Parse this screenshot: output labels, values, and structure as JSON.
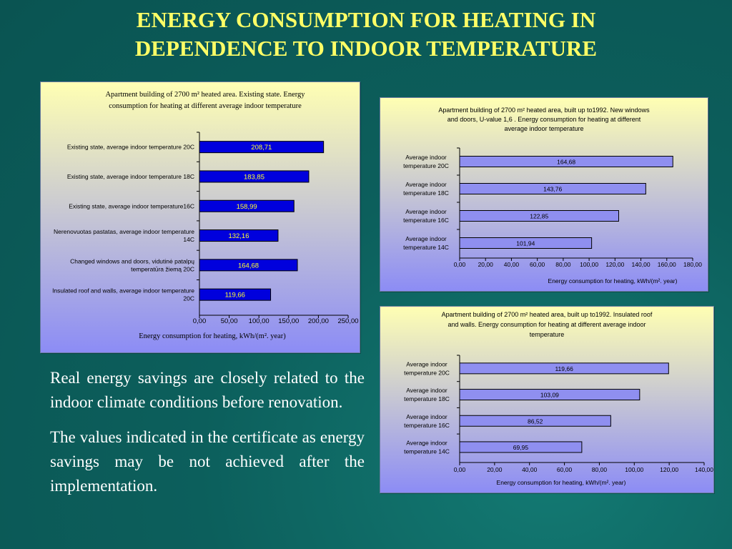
{
  "slide": {
    "title_line1": "ENERGY CONSUMPTION FOR HEATING IN",
    "title_line2": "DEPENDENCE TO INDOOR TEMPERATURE",
    "paragraph1": "Real energy savings are closely related to the indoor climate conditions before renovation.",
    "paragraph2": "The values indicated in the certificate as energy savings may be not achieved after the implementation."
  },
  "colors": {
    "background": "#0c5f5c",
    "title": "#ffff66",
    "bar_large_chart": "#0000dd",
    "bar_small_charts": "#8f8ff0",
    "panel_top": "#ffffb3",
    "panel_bottom": "#8c8cf5"
  },
  "chart_data": [
    {
      "type": "bar",
      "orientation": "horizontal",
      "title_lines": [
        "Apartment building of 2700 m² heated area. Existing state.  Energy",
        "consumption for heating at different average indoor temperature"
      ],
      "categories": [
        [
          "Existing state, average indoor temperature 20C"
        ],
        [
          "Existing state, average indoor temperature 18C"
        ],
        [
          "Existing state, average indoor temperature16C"
        ],
        [
          "Nerenovuotas pastatas, average indoor temperature",
          "14C"
        ],
        [
          "Changed windows and doors, vidutinė patalpų",
          "temperatūra žiemą 20C"
        ],
        [
          "Insulated roof and walls, average indoor temperature",
          "20C"
        ]
      ],
      "values": [
        208.71,
        183.85,
        158.99,
        132.16,
        164.68,
        119.66
      ],
      "value_labels": [
        "208,71",
        "183,85",
        "158,99",
        "132,16",
        "164,68",
        "119,66"
      ],
      "xlim": [
        0,
        250
      ],
      "ticks": [
        0,
        50,
        100,
        150,
        200,
        250
      ],
      "tick_labels": [
        "0,00",
        "50,00",
        "100,00",
        "150,00",
        "200,00",
        "250,00"
      ],
      "xlabel": "Energy consumption for heating, kWh/(m². year)",
      "grid": false
    },
    {
      "type": "bar",
      "orientation": "horizontal",
      "title_lines": [
        "Apartment building of 2700 m² heated area,   built up to1992. New windows",
        "and doors, U-value 1,6 .  Energy consumption for heating at different",
        "average indoor temperature"
      ],
      "categories": [
        [
          "Average indoor",
          "temperature  20C"
        ],
        [
          "Average indoor",
          "temperature  18C"
        ],
        [
          "Average indoor",
          "temperature  16C"
        ],
        [
          "Average indoor",
          "temperature 14C"
        ]
      ],
      "values": [
        164.68,
        143.76,
        122.85,
        101.94
      ],
      "value_labels": [
        "164,68",
        "143,76",
        "122,85",
        "101,94"
      ],
      "xlim": [
        0,
        180
      ],
      "ticks": [
        0,
        20,
        40,
        60,
        80,
        100,
        120,
        140,
        160,
        180
      ],
      "tick_labels": [
        "0,00",
        "20,00",
        "40,00",
        "60,00",
        "80,00",
        "100,00",
        "120,00",
        "140,00",
        "160,00",
        "180,00"
      ],
      "xlabel": "Energy consumption for heating, kWh/(m². year)",
      "grid": false
    },
    {
      "type": "bar",
      "orientation": "horizontal",
      "title_lines": [
        "Apartment building of 2700 m² heated area,   built up to1992. Insulated roof",
        "and walls.  Energy consumption for heating at different average indoor",
        "temperature"
      ],
      "categories": [
        [
          "Average indoor",
          "temperature  20C"
        ],
        [
          "Average indoor",
          "temperature  18C"
        ],
        [
          "Average indoor",
          "temperature  16C"
        ],
        [
          "Average indoor",
          "temperature 14C"
        ]
      ],
      "values": [
        119.66,
        103.09,
        86.52,
        69.95
      ],
      "value_labels": [
        "119,66",
        "103,09",
        "86,52",
        "69,95"
      ],
      "xlim": [
        0,
        140
      ],
      "ticks": [
        0,
        20,
        40,
        60,
        80,
        100,
        120,
        140
      ],
      "tick_labels": [
        "0,00",
        "20,00",
        "40,00",
        "60,00",
        "80,00",
        "100,00",
        "120,00",
        "140,00"
      ],
      "xlabel": "Energy consumption for heating, kWh/(m². year)",
      "grid": false
    }
  ]
}
